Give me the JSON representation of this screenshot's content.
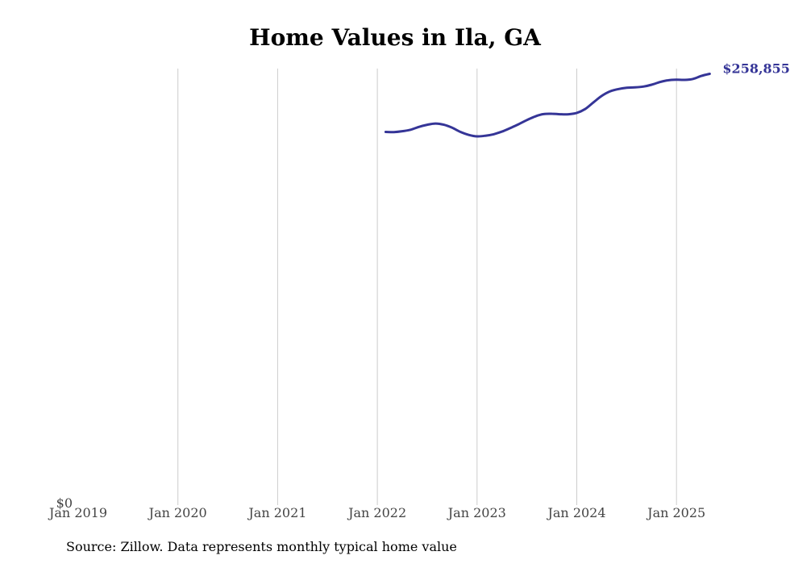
{
  "chart_data": {
    "type": "line",
    "title": "Home Values in Ila, GA",
    "x_tick_labels": [
      "Jan 2019",
      "Jan 2020",
      "Jan 2021",
      "Jan 2022",
      "Jan 2023",
      "Jan 2024",
      "Jan 2025"
    ],
    "y_tick_labels": [
      "$0"
    ],
    "ylim": [
      0,
      262000
    ],
    "grid": "vertical",
    "line_color": "#353597",
    "series": [
      {
        "values": [
          {
            "x": "2022-02",
            "y": 224000
          },
          {
            "x": "2022-03",
            "y": 223900
          },
          {
            "x": "2022-04",
            "y": 224400
          },
          {
            "x": "2022-05",
            "y": 225300
          },
          {
            "x": "2022-06",
            "y": 227000
          },
          {
            "x": "2022-07",
            "y": 228300
          },
          {
            "x": "2022-08",
            "y": 229000
          },
          {
            "x": "2022-09",
            "y": 228300
          },
          {
            "x": "2022-10",
            "y": 226500
          },
          {
            "x": "2022-11",
            "y": 224000
          },
          {
            "x": "2022-12",
            "y": 222200
          },
          {
            "x": "2023-01",
            "y": 221300
          },
          {
            "x": "2023-02",
            "y": 221700
          },
          {
            "x": "2023-03",
            "y": 222600
          },
          {
            "x": "2023-04",
            "y": 224200
          },
          {
            "x": "2023-05",
            "y": 226300
          },
          {
            "x": "2023-06",
            "y": 228600
          },
          {
            "x": "2023-07",
            "y": 231100
          },
          {
            "x": "2023-08",
            "y": 233300
          },
          {
            "x": "2023-09",
            "y": 234700
          },
          {
            "x": "2023-10",
            "y": 234900
          },
          {
            "x": "2023-11",
            "y": 234600
          },
          {
            "x": "2023-12",
            "y": 234600
          },
          {
            "x": "2024-01",
            "y": 235400
          },
          {
            "x": "2024-02",
            "y": 237700
          },
          {
            "x": "2024-03",
            "y": 241700
          },
          {
            "x": "2024-04",
            "y": 245600
          },
          {
            "x": "2024-05",
            "y": 248300
          },
          {
            "x": "2024-06",
            "y": 249700
          },
          {
            "x": "2024-07",
            "y": 250500
          },
          {
            "x": "2024-08",
            "y": 250700
          },
          {
            "x": "2024-09",
            "y": 251200
          },
          {
            "x": "2024-10",
            "y": 252300
          },
          {
            "x": "2024-11",
            "y": 253900
          },
          {
            "x": "2024-12",
            "y": 255000
          },
          {
            "x": "2025-01",
            "y": 255300
          },
          {
            "x": "2025-02",
            "y": 255200
          },
          {
            "x": "2025-03",
            "y": 255800
          },
          {
            "x": "2025-04",
            "y": 257600
          },
          {
            "x": "2025-05",
            "y": 258855
          }
        ]
      }
    ],
    "end_label": "$258,855"
  },
  "source_text": "Source: Zillow. Data represents monthly typical home value"
}
